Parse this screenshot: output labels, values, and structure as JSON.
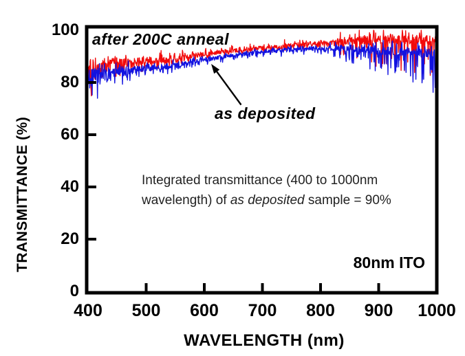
{
  "chart_data": {
    "type": "line",
    "title": "",
    "xlabel": "WAVELENGTH (nm)",
    "ylabel": "TRANSMITTANCE (%)",
    "xlim": [
      400,
      1000
    ],
    "ylim": [
      0,
      100
    ],
    "xticks": [
      "400",
      "500",
      "600",
      "700",
      "800",
      "900",
      "1000"
    ],
    "yticks": [
      "100",
      "80",
      "60",
      "40",
      "20",
      "0"
    ],
    "grid": false,
    "legend_position": "inline-labels",
    "frame_color": "#000000",
    "noise_note": "both spectra are noisy; noise amplitude is largest near 400nm and beyond ~860nm where red peaks clip at 100%",
    "anchor_format": [
      "nm",
      "mean_pct",
      "up_noise_pct",
      "down_noise_pct"
    ],
    "series": [
      {
        "name": "after 200C anneal",
        "color": "#f20a0a",
        "anchors": [
          [
            400,
            85.5,
            11,
            10
          ],
          [
            415,
            86,
            8,
            8
          ],
          [
            440,
            86.8,
            5.5,
            6
          ],
          [
            470,
            87.5,
            4,
            4.5
          ],
          [
            500,
            88.3,
            3,
            3.2
          ],
          [
            550,
            88.8,
            2.4,
            2.5
          ],
          [
            600,
            91,
            2,
            2
          ],
          [
            650,
            92.2,
            1.9,
            1.9
          ],
          [
            700,
            93.3,
            1.9,
            1.9
          ],
          [
            750,
            94.2,
            2,
            2
          ],
          [
            800,
            95.2,
            2.3,
            2.6
          ],
          [
            830,
            95.6,
            2.6,
            3.8
          ],
          [
            860,
            96,
            3.2,
            6.5
          ],
          [
            890,
            96.3,
            4,
            9.5
          ],
          [
            920,
            96.5,
            4,
            12.5
          ],
          [
            950,
            96.5,
            4,
            15.5
          ],
          [
            975,
            96.4,
            4,
            17
          ],
          [
            1000,
            96.2,
            4,
            18
          ]
        ]
      },
      {
        "name": "as deposited",
        "color": "#1212e0",
        "anchors": [
          [
            400,
            81,
            9,
            13
          ],
          [
            415,
            82.5,
            6,
            9
          ],
          [
            440,
            83.5,
            4.5,
            6
          ],
          [
            470,
            84.5,
            3.5,
            4.5
          ],
          [
            500,
            85.5,
            2.8,
            3.2
          ],
          [
            550,
            86.5,
            2.2,
            2.4
          ],
          [
            600,
            88.8,
            1.9,
            1.9
          ],
          [
            650,
            90.3,
            1.7,
            1.7
          ],
          [
            700,
            92,
            1.6,
            1.6
          ],
          [
            750,
            92.6,
            1.7,
            1.7
          ],
          [
            800,
            93,
            1.8,
            2.2
          ],
          [
            830,
            93,
            2,
            3.2
          ],
          [
            860,
            92.8,
            2.6,
            5.5
          ],
          [
            890,
            92.4,
            3.2,
            8.5
          ],
          [
            920,
            92,
            3.5,
            11.5
          ],
          [
            950,
            91.6,
            3.5,
            14
          ],
          [
            975,
            91.3,
            3.5,
            15
          ],
          [
            1000,
            91,
            3.5,
            16
          ]
        ]
      }
    ]
  },
  "labels": {
    "curve_annealed": "after 200C anneal",
    "curve_as_deposited": "as deposited",
    "sample": "80nm ITO",
    "annotation_line1": "Integrated transmittance (400 to 1000nm",
    "annotation_line2_pre": "wavelength) of ",
    "annotation_line2_italic": "as deposited",
    "annotation_line2_post": " sample = 90%"
  }
}
